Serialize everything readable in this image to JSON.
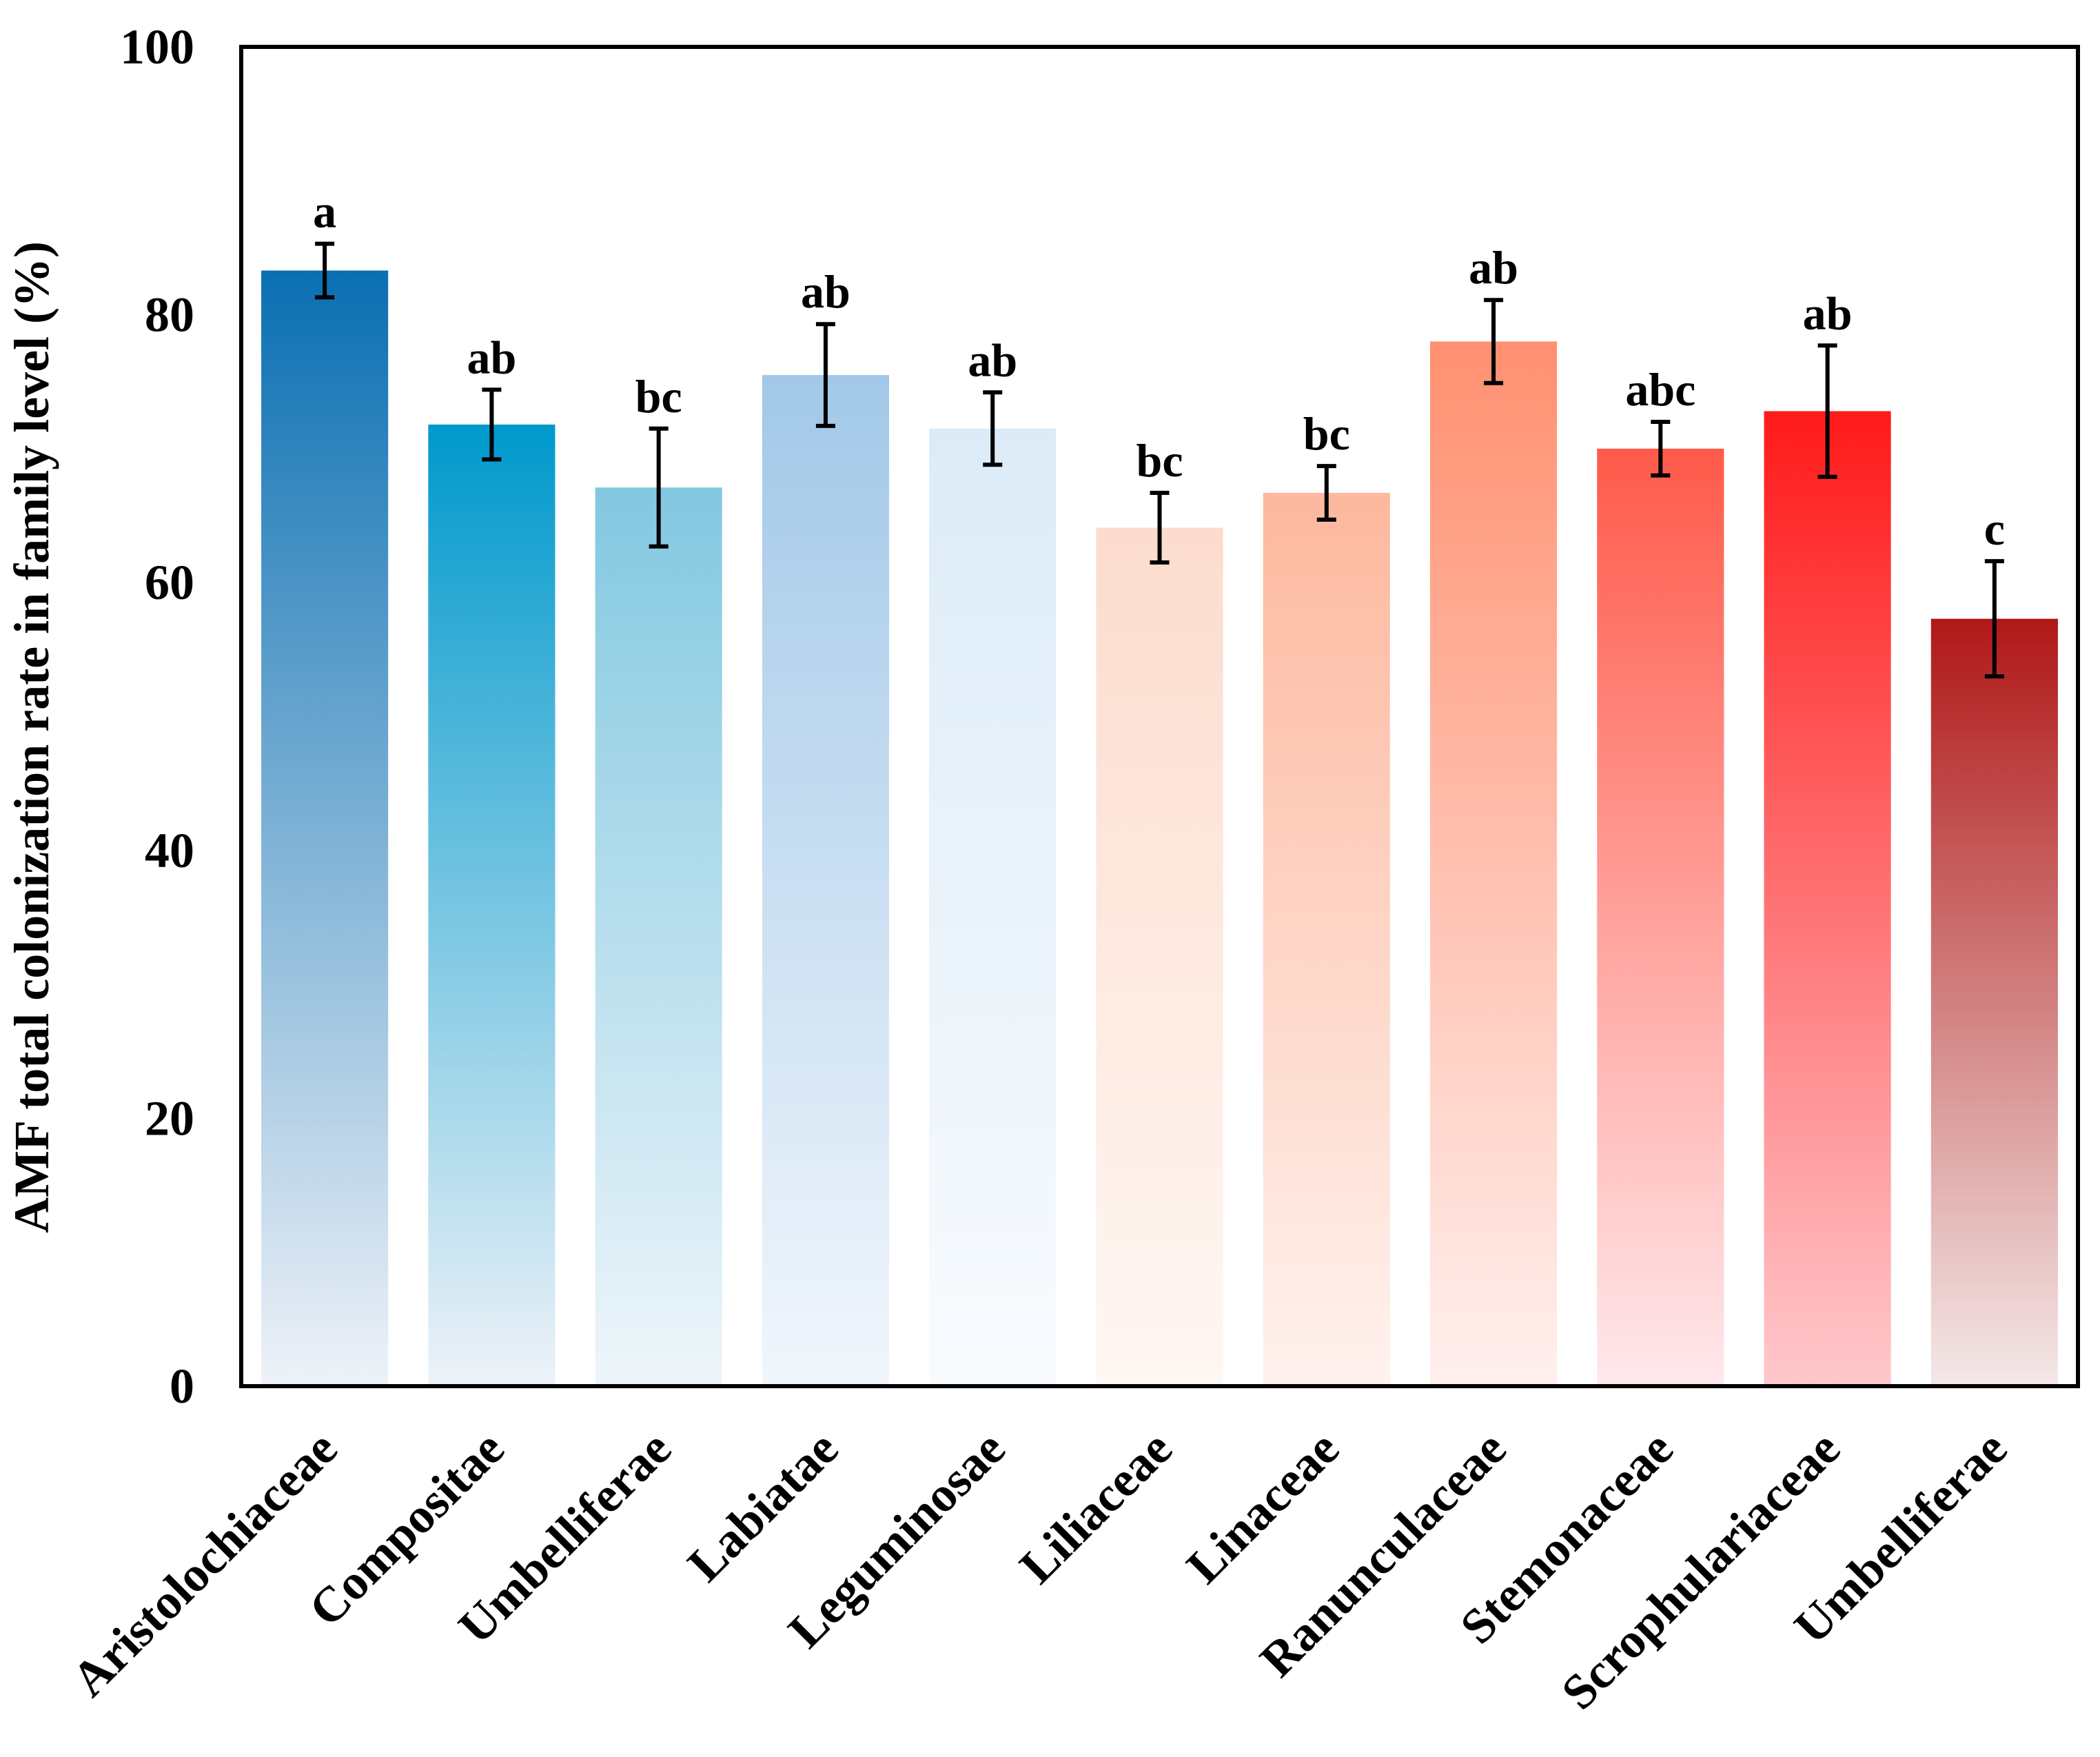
{
  "chart_data": {
    "type": "bar",
    "title": "",
    "xlabel": "",
    "ylabel": "AMF total colonization rate in family level (%)",
    "ylim": [
      0,
      100
    ],
    "yticks": [
      0,
      20,
      40,
      60,
      80,
      100
    ],
    "yticks_text": [
      "0",
      "20",
      "40",
      "60",
      "80",
      "100"
    ],
    "grid": false,
    "legend": "none",
    "categories": [
      "Aristolochiaceae",
      "Compositae",
      "Umbelliferae",
      "Labiatae",
      "Leguminosae",
      "Liliaceae",
      "Linaceae",
      "Ranunculaceae",
      "Stemonaceae",
      "Scrophulariaceae",
      "Umbelliferae"
    ],
    "values": [
      83.3,
      71.8,
      67.1,
      75.5,
      71.5,
      64.1,
      66.7,
      78.0,
      70.0,
      72.8,
      57.3
    ],
    "error": [
      2.0,
      2.6,
      4.4,
      3.8,
      2.7,
      2.6,
      2.0,
      3.1,
      2.0,
      4.9,
      4.3
    ],
    "significance": [
      "a",
      "ab",
      "bc",
      "ab",
      "ab",
      "bc",
      "bc",
      "ab",
      "abc",
      "ab",
      "c"
    ],
    "colors": [
      {
        "top": "#0A6FB2",
        "bottom": "#EEF2F8"
      },
      {
        "top": "#0099CC",
        "bottom": "#EDF2F8"
      },
      {
        "top": "#82C8E0",
        "bottom": "#EEF5FA"
      },
      {
        "top": "#A2C8E8",
        "bottom": "#F1F6FC"
      },
      {
        "top": "#DCEBF7",
        "bottom": "#F8FBFE"
      },
      {
        "top": "#FCDCCD",
        "bottom": "#FFF7F3"
      },
      {
        "top": "#FDB89E",
        "bottom": "#FFF2EE"
      },
      {
        "top": "#FF9070",
        "bottom": "#FFF0EE"
      },
      {
        "top": "#FF5A4A",
        "bottom": "#FFE8EC"
      },
      {
        "top": "#FF1A1A",
        "bottom": "#FFC8CC"
      },
      {
        "top": "#B01818",
        "bottom": "#F4E8E8"
      }
    ]
  }
}
